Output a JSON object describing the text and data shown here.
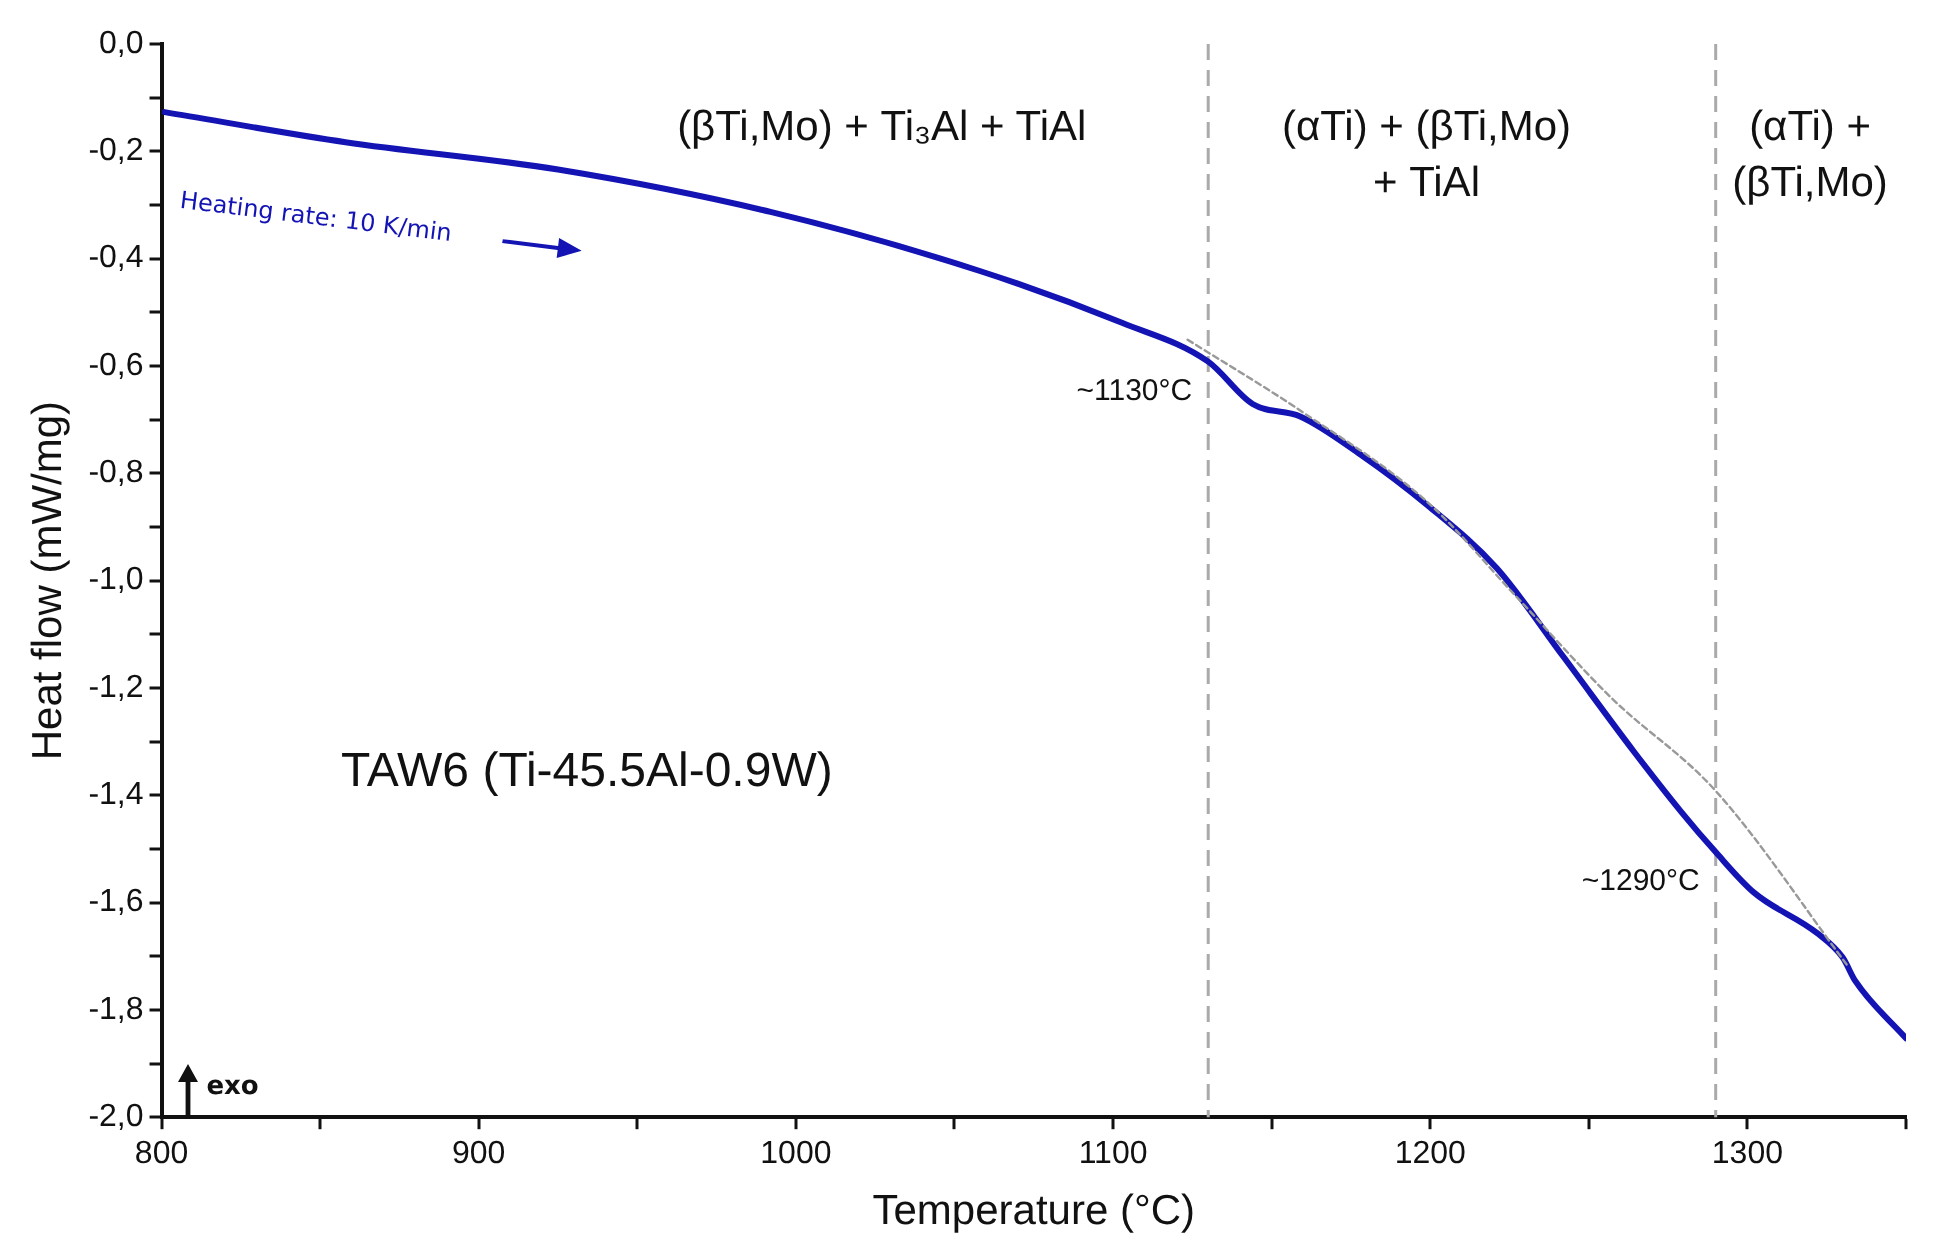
{
  "chart_data": {
    "type": "line",
    "xlabel": "Temperature (°C)",
    "ylabel": "Heat flow (mW/mg)",
    "xlim": [
      800,
      1350
    ],
    "xticks": [
      800,
      {
        "value": 850,
        "label": null
      },
      900,
      {
        "value": 950,
        "label": null
      },
      1000,
      {
        "value": 1050,
        "label": null
      },
      1100,
      {
        "value": 1150,
        "label": null
      },
      1200,
      {
        "value": 1250,
        "label": null
      },
      1300,
      {
        "value": 1350,
        "label": null
      }
    ],
    "ylim": [
      -2,
      0
    ],
    "yticks": [
      {
        "value": 0,
        "label": "0,0"
      },
      {
        "value": -0.1,
        "label": null
      },
      {
        "value": -0.2,
        "label": "-0,2"
      },
      {
        "value": -0.3,
        "label": null
      },
      {
        "value": -0.4,
        "label": "-0,4"
      },
      {
        "value": -0.5,
        "label": null
      },
      {
        "value": -0.6,
        "label": "-0,6"
      },
      {
        "value": -0.7,
        "label": null
      },
      {
        "value": -0.8,
        "label": "-0,8"
      },
      {
        "value": -0.9,
        "label": null
      },
      {
        "value": -1,
        "label": "-1,0"
      },
      {
        "value": -1.1,
        "label": null
      },
      {
        "value": -1.2,
        "label": "-1,2"
      },
      {
        "value": -1.3,
        "label": null
      },
      {
        "value": -1.4,
        "label": "-1,4"
      },
      {
        "value": -1.5,
        "label": null
      },
      {
        "value": -1.6,
        "label": "-1,6"
      },
      {
        "value": -1.7,
        "label": null
      },
      {
        "value": -1.8,
        "label": "-1,8"
      },
      {
        "value": -1.9,
        "label": null
      },
      {
        "value": -2,
        "label": "-2,0"
      }
    ],
    "grid": false,
    "legend": false,
    "marker": "none",
    "series": [
      {
        "color": "#1414b4",
        "line_style": "solid",
        "x": [
          801,
          858,
          925,
          992,
          1058,
          1103,
          1130,
          1144,
          1159,
          1178,
          1199,
          1221,
          1242,
          1264,
          1279,
          1290,
          1302,
          1322,
          1330,
          1334,
          1350
        ],
        "values": [
          -0.127,
          -0.183,
          -0.234,
          -0.313,
          -0.423,
          -0.52,
          -0.592,
          -0.671,
          -0.694,
          -0.765,
          -0.859,
          -0.977,
          -1.142,
          -1.317,
          -1.43,
          -1.506,
          -1.581,
          -1.657,
          -1.702,
          -1.746,
          -1.853
        ]
      },
      {
        "type": "line",
        "color": "#999999",
        "line_style": "dotted",
        "x": [
          1123.5,
          1159,
          1199,
          1227,
          1257,
          1290,
          1332
        ],
        "values": [
          -0.551,
          -0.683,
          -0.853,
          -1.029,
          -1.218,
          -1.392,
          -1.721
        ]
      }
    ],
    "ref_lines": [
      {
        "axis": "x",
        "value": 1130,
        "color": "#aaaaaa",
        "line_style": "dashed"
      },
      {
        "axis": "x",
        "value": 1290,
        "color": "#aaaaaa",
        "line_style": "dashed"
      }
    ],
    "annotations": [
      "(βTi,Mo) + Ti₃Al + TiAl",
      "(αTi) + (βTi,Mo) + TiAl",
      "(αTi) + (βTi,Mo)",
      "Heating rate: 10 K/min",
      "TAW6 (Ti-45.5Al-0.9W)",
      "exo",
      {
        "text": "~1130°C",
        "x": 1130,
        "y": -0.592
      },
      {
        "text": "~1290°C",
        "x": 1290,
        "y": -1.506
      }
    ]
  }
}
